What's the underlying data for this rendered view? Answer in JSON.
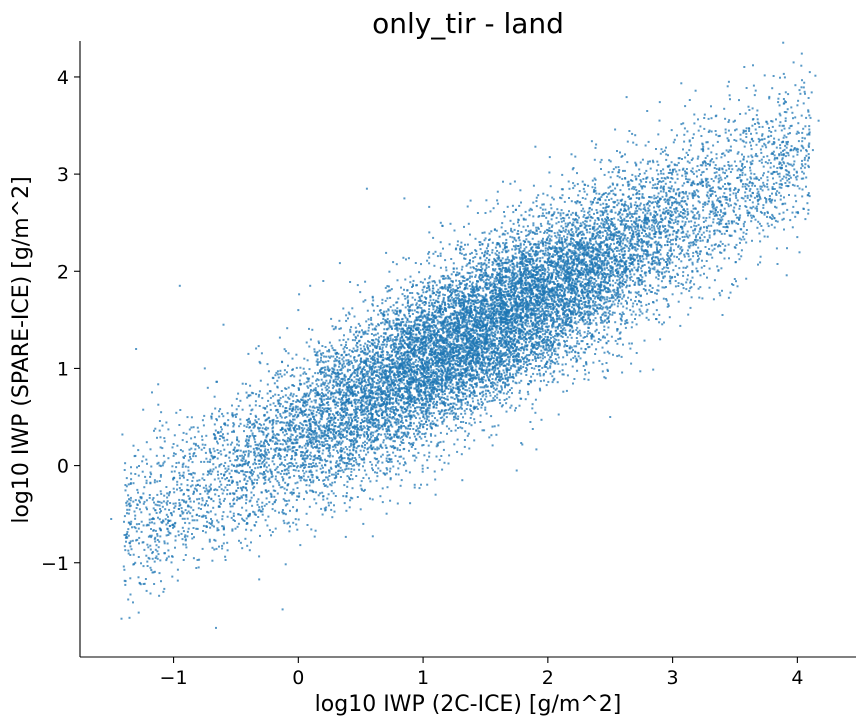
{
  "chart_data": {
    "type": "scatter",
    "title": "only_tir - land",
    "xlabel": "log10 IWP (2C-ICE) [g/m^2]",
    "ylabel": "log10 IWP (SPARE-ICE) [g/m^2]",
    "xlim": [
      -1.75,
      4.47
    ],
    "ylim": [
      -1.97,
      4.37
    ],
    "xticks": [
      -1,
      0,
      1,
      2,
      3,
      4
    ],
    "xtick_labels": [
      "−1",
      "0",
      "1",
      "2",
      "3",
      "4"
    ],
    "yticks": [
      -1,
      0,
      1,
      2,
      3,
      4
    ],
    "ytick_labels": [
      "−1",
      "0",
      "1",
      "2",
      "3",
      "4"
    ],
    "grid": false,
    "point_color": "#1f77b4",
    "series": [
      {
        "approximate_trend": {
          "slope": 0.72,
          "intercept": 0.33
        },
        "points": [
          [
            -1.5,
            -0.55
          ],
          [
            -1.41,
            0.32
          ],
          [
            -1.35,
            -0.8
          ],
          [
            -1.3,
            1.2
          ],
          [
            -1.27,
            -0.45
          ],
          [
            -1.2,
            -0.95
          ],
          [
            -1.15,
            -0.15
          ],
          [
            -1.1,
            0.55
          ],
          [
            -1.05,
            -0.65
          ],
          [
            -1.0,
            0.1
          ],
          [
            -0.95,
            1.85
          ],
          [
            -0.92,
            -0.3
          ],
          [
            -0.85,
            -0.75
          ],
          [
            -0.8,
            0.35
          ],
          [
            -0.75,
            1.0
          ],
          [
            -0.7,
            -0.55
          ],
          [
            -0.66,
            -1.67
          ],
          [
            -0.6,
            1.45
          ],
          [
            -0.55,
            -0.2
          ],
          [
            -0.5,
            0.5
          ],
          [
            -0.45,
            -0.85
          ],
          [
            -0.4,
            1.15
          ],
          [
            -0.3,
            0.2
          ],
          [
            -0.2,
            0.9
          ],
          [
            -0.1,
            -0.5
          ],
          [
            0.0,
            1.6
          ],
          [
            0.1,
            0.4
          ],
          [
            0.2,
            1.9
          ],
          [
            0.3,
            0.7
          ],
          [
            0.4,
            1.3
          ],
          [
            0.5,
            -0.45
          ],
          [
            0.55,
            2.85
          ],
          [
            0.6,
            1.7
          ],
          [
            0.7,
            0.3
          ],
          [
            0.8,
            1.1
          ],
          [
            0.85,
            2.75
          ],
          [
            0.9,
            0.6
          ],
          [
            1.0,
            1.4
          ],
          [
            1.05,
            2.4
          ],
          [
            1.1,
            -0.3
          ],
          [
            1.2,
            1.8
          ],
          [
            1.3,
            0.9
          ],
          [
            1.4,
            1.55
          ],
          [
            1.5,
            2.6
          ],
          [
            1.6,
            1.2
          ],
          [
            1.7,
            2.9
          ],
          [
            1.75,
            -0.05
          ],
          [
            1.8,
            1.65
          ],
          [
            1.9,
            2.2
          ],
          [
            2.0,
            1.0
          ],
          [
            2.1,
            1.85
          ],
          [
            2.2,
            3.05
          ],
          [
            2.3,
            1.5
          ],
          [
            2.4,
            2.4
          ],
          [
            2.5,
            0.5
          ],
          [
            2.6,
            1.9
          ],
          [
            2.7,
            3.4
          ],
          [
            2.8,
            2.2
          ],
          [
            2.9,
            1.3
          ],
          [
            3.0,
            2.7
          ],
          [
            3.1,
            3.7
          ],
          [
            3.2,
            2.0
          ],
          [
            3.3,
            3.1
          ],
          [
            3.4,
            1.55
          ],
          [
            3.5,
            3.55
          ],
          [
            3.6,
            2.6
          ],
          [
            3.7,
            3.35
          ],
          [
            3.8,
            2.85
          ],
          [
            3.9,
            3.75
          ],
          [
            4.0,
            3.2
          ],
          [
            4.1,
            4.05
          ],
          [
            4.17,
            3.55
          ]
        ]
      }
    ]
  }
}
